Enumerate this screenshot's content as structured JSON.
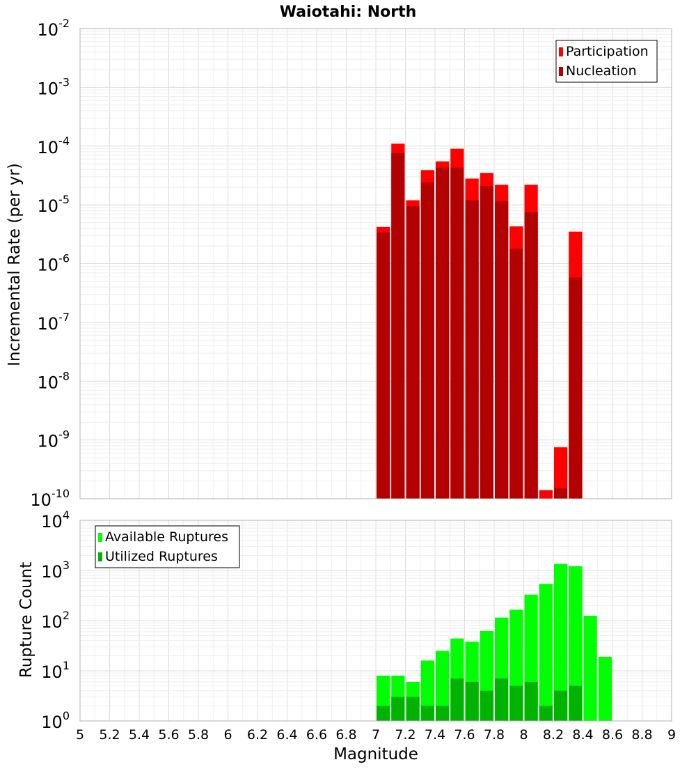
{
  "chart_data": [
    {
      "type": "bar",
      "title": "Waiotahi: North",
      "ylabel": "Incremental Rate (per yr)",
      "xlabel": "",
      "yscale": "log",
      "ylim": [
        1e-10,
        0.01
      ],
      "xlim": [
        5,
        9
      ],
      "bin_width": 0.1,
      "x": [
        7.05,
        7.15,
        7.25,
        7.35,
        7.45,
        7.55,
        7.65,
        7.75,
        7.85,
        7.95,
        8.05,
        8.15,
        8.25,
        8.35
      ],
      "series": [
        {
          "name": "Participation",
          "color": "#ff0000",
          "values": [
            4.2e-06,
            0.00011,
            1.2e-05,
            3.9e-05,
            5.5e-05,
            9e-05,
            2.8e-05,
            3.5e-05,
            2.2e-05,
            4.3e-06,
            2.2e-05,
            1.4e-10,
            7.5e-10,
            3.5e-06
          ]
        },
        {
          "name": "Nucleation",
          "color": "#b30000",
          "values": [
            3.4e-06,
            7.6e-05,
            9.5e-06,
            2.4e-05,
            4.3e-05,
            4.3e-05,
            1.2e-05,
            2.1e-05,
            1.15e-05,
            1.8e-06,
            7.5e-06,
            1e-10,
            1.5e-10,
            5.8e-07
          ]
        }
      ],
      "y_tick_exponents": [
        -10,
        -9,
        -8,
        -7,
        -6,
        -5,
        -4,
        -3,
        -2
      ],
      "legend_position": "top-right",
      "grid": true
    },
    {
      "type": "bar",
      "title": "",
      "ylabel": "Rupture Count",
      "xlabel": "Magnitude",
      "yscale": "log",
      "ylim": [
        1,
        10000
      ],
      "xlim": [
        5,
        9
      ],
      "bin_width": 0.1,
      "x": [
        7.05,
        7.15,
        7.25,
        7.35,
        7.45,
        7.55,
        7.65,
        7.75,
        7.85,
        7.95,
        8.05,
        8.15,
        8.25,
        8.35,
        8.45,
        8.55
      ],
      "series": [
        {
          "name": "Available Ruptures",
          "color": "#00ff00",
          "values": [
            8,
            8,
            6,
            16,
            25,
            44,
            38,
            62,
            115,
            165,
            330,
            540,
            1350,
            1220,
            125,
            19
          ]
        },
        {
          "name": "Utilized Ruptures",
          "color": "#00b300",
          "values": [
            2,
            3,
            3,
            2,
            2,
            7,
            6,
            4,
            7,
            5,
            6,
            2,
            4,
            5,
            0,
            0
          ]
        }
      ],
      "y_tick_exponents": [
        0,
        1,
        2,
        3,
        4
      ],
      "legend_position": "top-left",
      "grid": true
    }
  ],
  "x_tick_labels": [
    "5",
    "5.2",
    "5.4",
    "5.6",
    "5.8",
    "6",
    "6.2",
    "6.4",
    "6.6",
    "6.8",
    "7",
    "7.2",
    "7.4",
    "7.6",
    "7.8",
    "8",
    "8.2",
    "8.4",
    "8.6",
    "8.8",
    "9"
  ],
  "y_tick_base": "10"
}
